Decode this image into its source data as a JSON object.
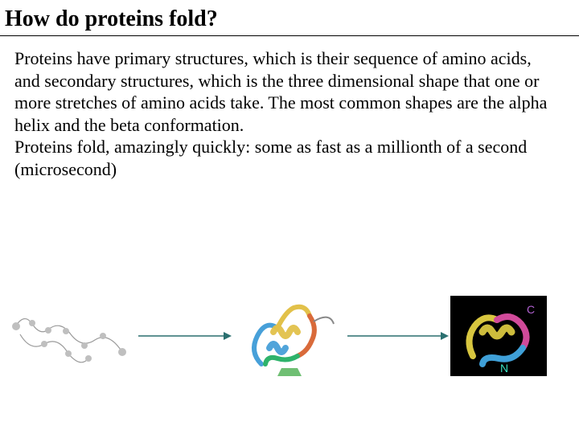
{
  "title": "How do proteins fold?",
  "paragraph": "Proteins have primary structures, which is their sequence of amino acids, and secondary structures, which is the three dimensional shape that one or more stretches of amino acids  take. The most common shapes are the alpha helix and the beta conformation.\nProteins fold, amazingly quickly: some as fast as a millionth of a second (microsecond)",
  "figures": {
    "unfolded": {
      "name": "unfolded-chain",
      "stroke": "#9a9a9a",
      "ball": "#bfbfbf"
    },
    "intermediate": {
      "name": "partially-folded",
      "colors": {
        "helix1": "#47a0d9",
        "helix2": "#2eb36b",
        "helix3": "#e2c14a",
        "helix4": "#d96a3a",
        "sheet": "#6fbf73",
        "coil": "#888888"
      }
    },
    "folded": {
      "name": "folded-protein",
      "bg": "#000000",
      "colors": {
        "a": "#d8c63f",
        "b": "#3fa0d8",
        "c": "#d14a9a",
        "n_label": "#38e0c2",
        "c_label": "#b060d0"
      }
    }
  },
  "arrow_color": "#2a6f6f"
}
